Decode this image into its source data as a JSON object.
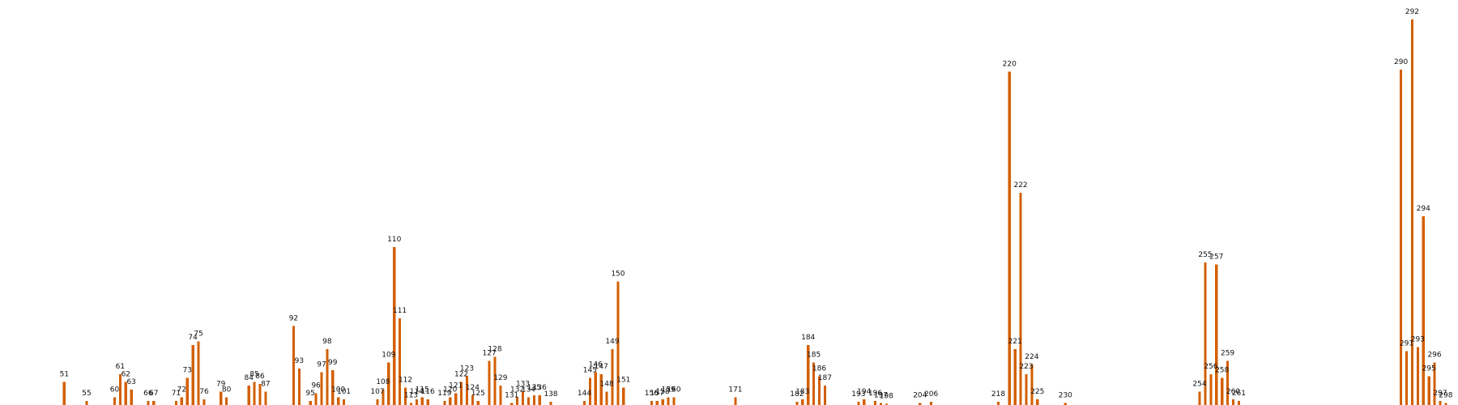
{
  "chart_data": {
    "type": "bar",
    "title": "",
    "xlabel": "",
    "ylabel": "",
    "colors": {
      "bar": "#D35F00",
      "label": "#111111",
      "background": "#FFFFFF"
    },
    "grid": false,
    "axes_visible": false,
    "x_range": [
      44,
      303
    ],
    "ylim": [
      0,
      100
    ],
    "peaks": [
      {
        "x": 51,
        "value": 6.0,
        "label": "51"
      },
      {
        "x": 55,
        "value": 1.0,
        "label": "55"
      },
      {
        "x": 60,
        "value": 2.0,
        "label": "60"
      },
      {
        "x": 61,
        "value": 8.0,
        "label": "61"
      },
      {
        "x": 62,
        "value": 6.0,
        "label": "62"
      },
      {
        "x": 63,
        "value": 4.0,
        "label": "63"
      },
      {
        "x": 66,
        "value": 1.0,
        "label": "66"
      },
      {
        "x": 67,
        "value": 1.0,
        "label": "67"
      },
      {
        "x": 71,
        "value": 1.0,
        "label": "71"
      },
      {
        "x": 72,
        "value": 2.0,
        "label": "72"
      },
      {
        "x": 73,
        "value": 7.0,
        "label": "73"
      },
      {
        "x": 74,
        "value": 15.5,
        "label": "74"
      },
      {
        "x": 75,
        "value": 16.5,
        "label": "75"
      },
      {
        "x": 76,
        "value": 1.5,
        "label": "76"
      },
      {
        "x": 79,
        "value": 3.5,
        "label": "79"
      },
      {
        "x": 80,
        "value": 2.0,
        "label": "80"
      },
      {
        "x": 84,
        "value": 5.0,
        "label": "84"
      },
      {
        "x": 85,
        "value": 6.0,
        "label": "85"
      },
      {
        "x": 86,
        "value": 5.5,
        "label": "86"
      },
      {
        "x": 87,
        "value": 3.5,
        "label": "87"
      },
      {
        "x": 92,
        "value": 20.5,
        "label": "92"
      },
      {
        "x": 93,
        "value": 9.5,
        "label": "93"
      },
      {
        "x": 95,
        "value": 1.0,
        "label": "95"
      },
      {
        "x": 96,
        "value": 3.0,
        "label": "96"
      },
      {
        "x": 97,
        "value": 8.5,
        "label": "97"
      },
      {
        "x": 98,
        "value": 14.5,
        "label": "98"
      },
      {
        "x": 99,
        "value": 9.0,
        "label": "99"
      },
      {
        "x": 100,
        "value": 2.0,
        "label": "100"
      },
      {
        "x": 101,
        "value": 1.5,
        "label": "101"
      },
      {
        "x": 107,
        "value": 1.5,
        "label": "107"
      },
      {
        "x": 108,
        "value": 4.0,
        "label": "108"
      },
      {
        "x": 109,
        "value": 11.0,
        "label": "109"
      },
      {
        "x": 110,
        "value": 41.0,
        "label": "110"
      },
      {
        "x": 111,
        "value": 22.5,
        "label": "111"
      },
      {
        "x": 112,
        "value": 4.5,
        "label": "112"
      },
      {
        "x": 113,
        "value": 0.5,
        "label": "113"
      },
      {
        "x": 114,
        "value": 1.5,
        "label": "114"
      },
      {
        "x": 115,
        "value": 2.0,
        "label": "115"
      },
      {
        "x": 116,
        "value": 1.5,
        "label": "116"
      },
      {
        "x": 119,
        "value": 1.0,
        "label": "119"
      },
      {
        "x": 120,
        "value": 2.0,
        "label": "120"
      },
      {
        "x": 121,
        "value": 3.0,
        "label": "121"
      },
      {
        "x": 122,
        "value": 6.0,
        "label": "122"
      },
      {
        "x": 123,
        "value": 7.5,
        "label": "123"
      },
      {
        "x": 124,
        "value": 2.5,
        "label": "124"
      },
      {
        "x": 125,
        "value": 1.0,
        "label": "125"
      },
      {
        "x": 127,
        "value": 11.5,
        "label": "127"
      },
      {
        "x": 128,
        "value": 12.5,
        "label": "128"
      },
      {
        "x": 129,
        "value": 5.0,
        "label": "129"
      },
      {
        "x": 131,
        "value": 0.5,
        "label": "131"
      },
      {
        "x": 132,
        "value": 2.0,
        "label": "132"
      },
      {
        "x": 133,
        "value": 3.5,
        "label": "133"
      },
      {
        "x": 134,
        "value": 2.0,
        "label": "134"
      },
      {
        "x": 135,
        "value": 2.5,
        "label": "135"
      },
      {
        "x": 136,
        "value": 2.5,
        "label": "136"
      },
      {
        "x": 138,
        "value": 0.8,
        "label": "138"
      },
      {
        "x": 144,
        "value": 1.0,
        "label": "144"
      },
      {
        "x": 145,
        "value": 7.0,
        "label": "145"
      },
      {
        "x": 146,
        "value": 8.5,
        "label": "146"
      },
      {
        "x": 147,
        "value": 8.0,
        "label": "147"
      },
      {
        "x": 148,
        "value": 3.5,
        "label": "148"
      },
      {
        "x": 149,
        "value": 14.5,
        "label": "149"
      },
      {
        "x": 150,
        "value": 32.0,
        "label": "150"
      },
      {
        "x": 151,
        "value": 4.5,
        "label": "151"
      },
      {
        "x": 156,
        "value": 1.0,
        "label": "156"
      },
      {
        "x": 157,
        "value": 1.0,
        "label": "157"
      },
      {
        "x": 158,
        "value": 1.5,
        "label": "158"
      },
      {
        "x": 159,
        "value": 2.0,
        "label": "159"
      },
      {
        "x": 160,
        "value": 2.0,
        "label": "160"
      },
      {
        "x": 171,
        "value": 2.0,
        "label": "171"
      },
      {
        "x": 182,
        "value": 0.8,
        "label": "182"
      },
      {
        "x": 183,
        "value": 1.5,
        "label": "183"
      },
      {
        "x": 184,
        "value": 15.5,
        "label": "184"
      },
      {
        "x": 185,
        "value": 11.0,
        "label": "185"
      },
      {
        "x": 186,
        "value": 7.5,
        "label": "186"
      },
      {
        "x": 187,
        "value": 5.0,
        "label": "187"
      },
      {
        "x": 193,
        "value": 0.8,
        "label": "193"
      },
      {
        "x": 194,
        "value": 1.5,
        "label": "194"
      },
      {
        "x": 196,
        "value": 1.0,
        "label": "196"
      },
      {
        "x": 197,
        "value": 0.5,
        "label": "197"
      },
      {
        "x": 198,
        "value": 0.3,
        "label": "198"
      },
      {
        "x": 204,
        "value": 0.5,
        "label": "204"
      },
      {
        "x": 206,
        "value": 0.8,
        "label": "206"
      },
      {
        "x": 218,
        "value": 0.8,
        "label": "218"
      },
      {
        "x": 220,
        "value": 86.5,
        "label": "220"
      },
      {
        "x": 221,
        "value": 14.5,
        "label": "221"
      },
      {
        "x": 222,
        "value": 55.0,
        "label": "222"
      },
      {
        "x": 223,
        "value": 8.0,
        "label": "223"
      },
      {
        "x": 224,
        "value": 10.5,
        "label": "224"
      },
      {
        "x": 225,
        "value": 1.5,
        "label": "225"
      },
      {
        "x": 230,
        "value": 0.5,
        "label": "230"
      },
      {
        "x": 254,
        "value": 3.5,
        "label": "254"
      },
      {
        "x": 255,
        "value": 37.0,
        "label": "255"
      },
      {
        "x": 256,
        "value": 8.0,
        "label": "256"
      },
      {
        "x": 257,
        "value": 36.5,
        "label": "257"
      },
      {
        "x": 258,
        "value": 7.0,
        "label": "258"
      },
      {
        "x": 259,
        "value": 11.5,
        "label": "259"
      },
      {
        "x": 260,
        "value": 1.5,
        "label": "260"
      },
      {
        "x": 261,
        "value": 1.0,
        "label": "261"
      },
      {
        "x": 290,
        "value": 87.0,
        "label": "290"
      },
      {
        "x": 291,
        "value": 14.0,
        "label": "291"
      },
      {
        "x": 292,
        "value": 100.0,
        "label": "292"
      },
      {
        "x": 293,
        "value": 15.0,
        "label": "293"
      },
      {
        "x": 294,
        "value": 49.0,
        "label": "294"
      },
      {
        "x": 295,
        "value": 7.5,
        "label": "295"
      },
      {
        "x": 296,
        "value": 11.0,
        "label": "296"
      },
      {
        "x": 297,
        "value": 1.0,
        "label": "297"
      },
      {
        "x": 298,
        "value": 0.5,
        "label": "298"
      }
    ]
  }
}
